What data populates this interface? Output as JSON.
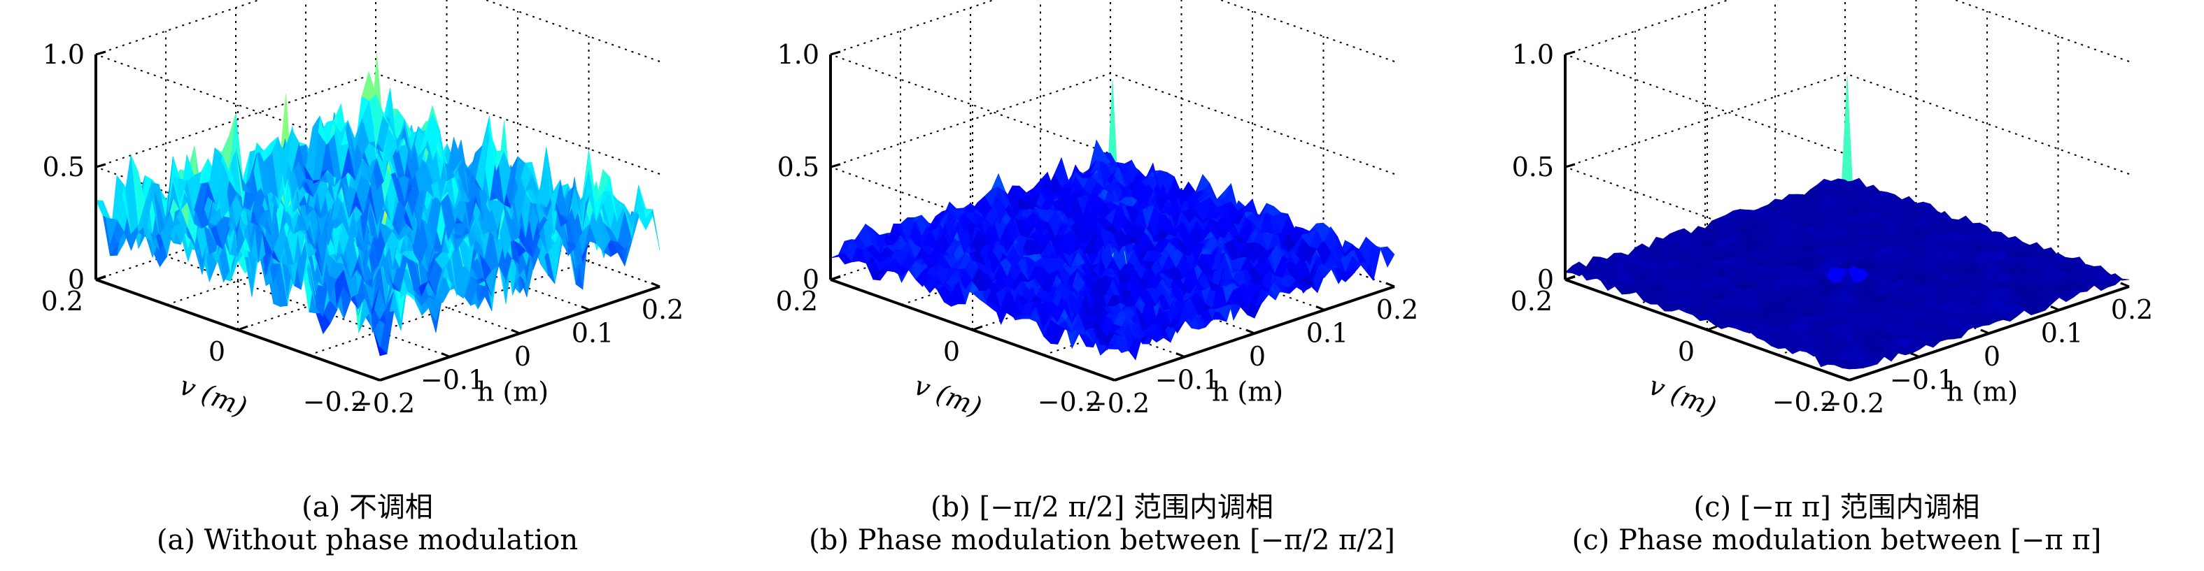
{
  "panels": [
    {
      "caption_zh": "(a) 不调相",
      "caption_en": "(a) Without phase modulation"
    },
    {
      "caption_zh": "(b) [−π/2 π/2] 范围内调相",
      "caption_en": "(b) Phase modulation between [−π/2 π/2]"
    },
    {
      "caption_zh": "(c) [−π π] 范围内调相",
      "caption_en": "(c) Phase modulation between [−π π]"
    }
  ],
  "chart_data": [
    {
      "type": "surface",
      "xlabel": "h (m)",
      "ylabel": "v (m)",
      "zlabel": "",
      "xlim": [
        -0.2,
        0.2
      ],
      "ylim": [
        -0.2,
        0.2
      ],
      "zlim": [
        0,
        1.0
      ],
      "x_ticks": [
        "−0.2",
        "−0.1",
        "0",
        "0.1",
        "0.2"
      ],
      "y_ticks": [
        "−0.2",
        "0",
        "0.2"
      ],
      "z_ticks": [
        "0",
        "0.5",
        "1.0"
      ],
      "grid": true,
      "colormap": "jet",
      "peak": {
        "h": 0.0,
        "v": 0.0,
        "z": 0.88
      },
      "background_level": 0.28,
      "background_spread": 0.5,
      "secondary_peaks": [
        {
          "h": -0.13,
          "v": 0.13,
          "z": 0.6
        },
        {
          "h": 0.1,
          "v": 0.1,
          "z": 0.8
        },
        {
          "h": -0.04,
          "v": 0.09,
          "z": 0.78
        },
        {
          "h": 0.14,
          "v": -0.04,
          "z": 0.62
        },
        {
          "h": -0.16,
          "v": -0.06,
          "z": 0.58
        },
        {
          "h": 0.06,
          "v": -0.14,
          "z": 0.55
        },
        {
          "h": 0.18,
          "v": 0.16,
          "z": 0.5
        }
      ]
    },
    {
      "type": "surface",
      "xlabel": "h (m)",
      "ylabel": "v (m)",
      "zlabel": "",
      "xlim": [
        -0.2,
        0.2
      ],
      "ylim": [
        -0.2,
        0.2
      ],
      "zlim": [
        0,
        1.0
      ],
      "x_ticks": [
        "−0.2",
        "−0.1",
        "0",
        "0.1",
        "0.2"
      ],
      "y_ticks": [
        "−0.2",
        "0",
        "0.2"
      ],
      "z_ticks": [
        "0",
        "0.5",
        "1.0"
      ],
      "grid": true,
      "colormap": "jet",
      "peak": {
        "h": 0.0,
        "v": 0.0,
        "z": 0.9
      },
      "background_level": 0.12,
      "background_spread": 0.22,
      "secondary_peaks": [
        {
          "h": -0.06,
          "v": 0.05,
          "z": 0.32
        },
        {
          "h": 0.07,
          "v": -0.05,
          "z": 0.3
        },
        {
          "h": 0.12,
          "v": 0.1,
          "z": 0.28
        }
      ]
    },
    {
      "type": "surface",
      "xlabel": "h (m)",
      "ylabel": "v (m)",
      "zlabel": "",
      "xlim": [
        -0.2,
        0.2
      ],
      "ylim": [
        -0.2,
        0.2
      ],
      "zlim": [
        0,
        1.0
      ],
      "x_ticks": [
        "−0.2",
        "−0.1",
        "0",
        "0.1",
        "0.2"
      ],
      "y_ticks": [
        "−0.2",
        "0",
        "0.2"
      ],
      "z_ticks": [
        "0",
        "0.5",
        "1.0"
      ],
      "grid": true,
      "colormap": "jet",
      "peak": {
        "h": 0.0,
        "v": 0.0,
        "z": 0.92
      },
      "background_level": 0.04,
      "background_spread": 0.05,
      "secondary_peaks": []
    }
  ]
}
